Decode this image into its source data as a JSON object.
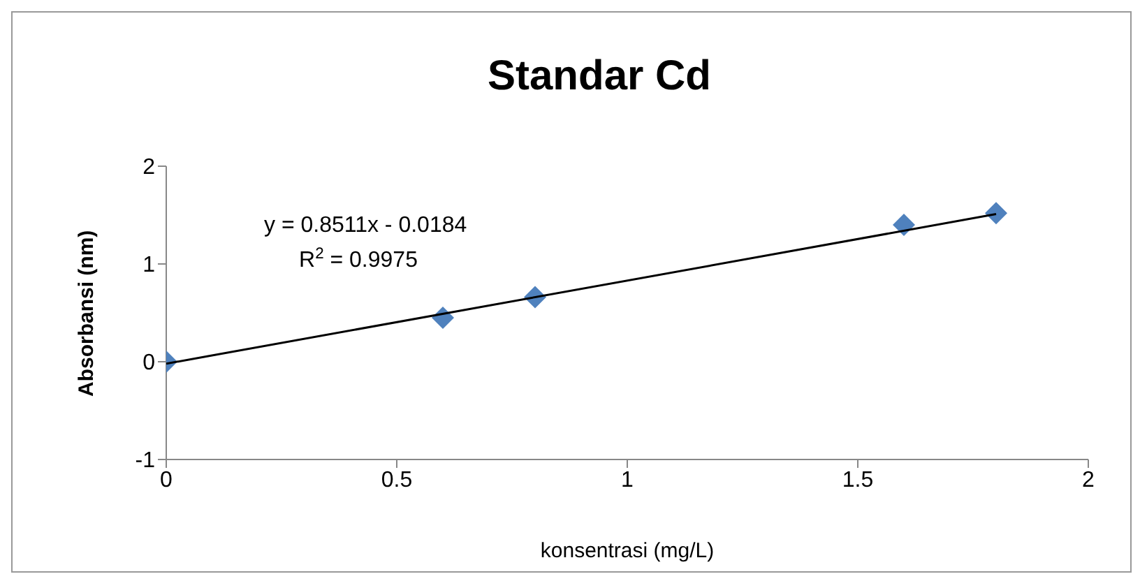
{
  "chart_data": {
    "type": "scatter",
    "title": "Standar Cd",
    "xlabel": "konsentrasi (mg/L)",
    "ylabel": "Absorbansi (nm)",
    "x": [
      0,
      0.6,
      0.8,
      1.6,
      1.8
    ],
    "series": [
      {
        "color": "#4f81bd",
        "values": [
          0,
          0.45,
          0.66,
          1.4,
          1.52
        ],
        "marker": "diamond"
      },
      {
        "type": "line",
        "color": "#000000",
        "x": [
          0,
          1.8
        ],
        "values": [
          -0.02,
          1.51
        ]
      }
    ],
    "annotations": [
      "y = 0.8511x - 0.0184",
      "R$^{2}$ = 0.9975"
    ],
    "xlim": [
      0,
      2
    ],
    "xticks": [
      0,
      0.5,
      1,
      1.5,
      2
    ],
    "ylim": [
      -1,
      2
    ],
    "yticks": [
      -1,
      0,
      1,
      2
    ]
  }
}
